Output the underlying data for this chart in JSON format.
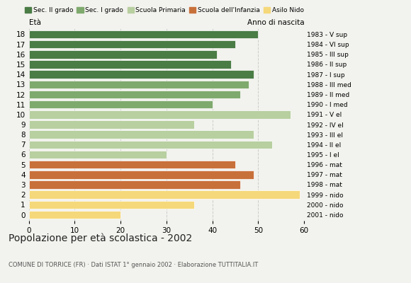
{
  "ages": [
    18,
    17,
    16,
    15,
    14,
    13,
    12,
    11,
    10,
    9,
    8,
    7,
    6,
    5,
    4,
    3,
    2,
    1,
    0
  ],
  "values": [
    50,
    45,
    41,
    44,
    49,
    48,
    46,
    40,
    57,
    36,
    49,
    53,
    30,
    45,
    49,
    46,
    59,
    36,
    20
  ],
  "colors": [
    "#4a7c45",
    "#4a7c45",
    "#4a7c45",
    "#4a7c45",
    "#4a7c45",
    "#7faa6e",
    "#7faa6e",
    "#7faa6e",
    "#b8cfa0",
    "#b8cfa0",
    "#b8cfa0",
    "#b8cfa0",
    "#b8cfa0",
    "#c8703a",
    "#c8703a",
    "#c8703a",
    "#f5d87a",
    "#f5d87a",
    "#f5d87a"
  ],
  "right_labels": [
    "1983 - V sup",
    "1984 - VI sup",
    "1985 - III sup",
    "1986 - II sup",
    "1987 - I sup",
    "1988 - III med",
    "1989 - II med",
    "1990 - I med",
    "1991 - V el",
    "1992 - IV el",
    "1993 - III el",
    "1994 - II el",
    "1995 - I el",
    "1996 - mat",
    "1997 - mat",
    "1998 - mat",
    "1999 - nido",
    "2000 - nido",
    "2001 - nido"
  ],
  "legend_labels": [
    "Sec. II grado",
    "Sec. I grado",
    "Scuola Primaria",
    "Scuola dell'Infanzia",
    "Asilo Nido"
  ],
  "legend_colors": [
    "#4a7c45",
    "#7faa6e",
    "#b8cfa0",
    "#c8703a",
    "#f5d87a"
  ],
  "xlabel_left": "Età",
  "xlabel_right": "Anno di nascita",
  "title": "Popolazione per età scolastica - 2002",
  "subtitle": "COMUNE DI TORRICE (FR) · Dati ISTAT 1° gennaio 2002 · Elaborazione TUTTITALIA.IT",
  "xlim": [
    0,
    60
  ],
  "xticks": [
    0,
    10,
    20,
    30,
    40,
    50,
    60
  ],
  "background_color": "#f2f2ee"
}
